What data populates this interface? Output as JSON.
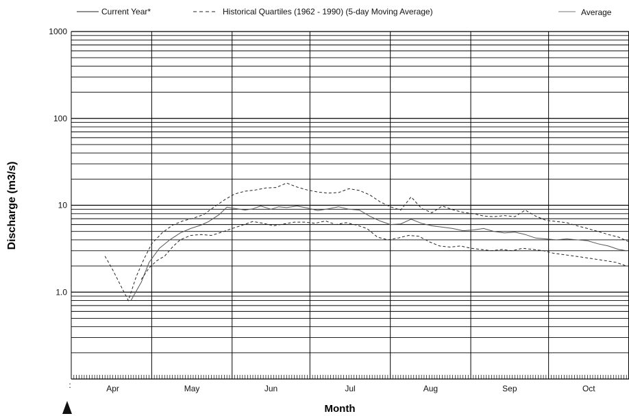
{
  "chart_data": {
    "type": "line",
    "title": "",
    "xlabel": "Month",
    "ylabel": "Discharge (m3/s)",
    "yscale": "log",
    "ylim": [
      0.1,
      1000
    ],
    "y_tick_labels": [
      {
        "value": 1000,
        "label": "1000"
      },
      {
        "value": 100,
        "label": "100"
      },
      {
        "value": 10,
        "label": "10"
      },
      {
        "value": 1,
        "label": "1.0"
      }
    ],
    "x_tick_labels": [
      "Apr",
      "May",
      "Jun",
      "Jul",
      "Aug",
      "Sep",
      "Oct"
    ],
    "x_unit": "day-of-year",
    "xlim": [
      90,
      305
    ],
    "legend": {
      "placement": "top",
      "entries": [
        {
          "label": "Current Year*",
          "style": "solid"
        },
        {
          "label": "Historical Quartiles (1962  -  1990)  (5-day Moving Average)",
          "style": "dashed"
        },
        {
          "label": "Average",
          "style": "solid-light"
        }
      ]
    },
    "grid": true,
    "series": [
      {
        "name": "Average",
        "style": "solid-light",
        "color": "#555555",
        "x": [
          113,
          117,
          120,
          124,
          128,
          132,
          136,
          140,
          143,
          147,
          150,
          153,
          157,
          160,
          163,
          167,
          170,
          173,
          177,
          181,
          185,
          189,
          193,
          197,
          201,
          205,
          209,
          213,
          217,
          221,
          225,
          229,
          233,
          237,
          241,
          245,
          249,
          253,
          257,
          261,
          265,
          269,
          273,
          277,
          281,
          285,
          289,
          293,
          297,
          301,
          304
        ],
        "y": [
          0.8,
          1.3,
          2.2,
          3.2,
          4.0,
          4.8,
          5.4,
          5.9,
          6.5,
          7.8,
          9.5,
          9.2,
          8.8,
          9.1,
          9.8,
          9.0,
          9.6,
          9.4,
          9.8,
          9.3,
          8.7,
          9.1,
          9.6,
          9.0,
          8.8,
          7.5,
          6.6,
          6.0,
          6.1,
          6.9,
          6.2,
          5.8,
          5.6,
          5.4,
          5.1,
          5.2,
          5.4,
          5.0,
          4.8,
          4.9,
          4.6,
          4.2,
          4.1,
          4.0,
          4.1,
          4.0,
          3.9,
          3.6,
          3.4,
          3.1,
          3.0
        ]
      },
      {
        "name": "Upper Quartile",
        "style": "dashed",
        "color": "#222222",
        "x": [
          103,
          106,
          109,
          112,
          115,
          118,
          121,
          125,
          129,
          133,
          137,
          141,
          145,
          149,
          153,
          157,
          161,
          165,
          169,
          173,
          177,
          181,
          185,
          189,
          193,
          197,
          201,
          205,
          209,
          213,
          217,
          221,
          225,
          229,
          233,
          237,
          241,
          245,
          249,
          253,
          257,
          261,
          265,
          269,
          273,
          277,
          281,
          285,
          289,
          293,
          297,
          301,
          305
        ],
        "y": [
          2.6,
          1.8,
          1.2,
          0.8,
          1.5,
          2.4,
          3.6,
          4.8,
          5.9,
          6.6,
          7.1,
          7.8,
          9.5,
          11.5,
          13.5,
          14.5,
          15.0,
          15.8,
          16.0,
          18.0,
          16.2,
          15.0,
          14.2,
          13.8,
          14.0,
          15.5,
          14.8,
          13.2,
          11.0,
          9.6,
          8.8,
          12.5,
          9.2,
          8.2,
          9.8,
          8.9,
          8.3,
          8.0,
          7.5,
          7.4,
          7.6,
          7.4,
          8.8,
          7.5,
          6.7,
          6.5,
          6.3,
          5.8,
          5.4,
          5.0,
          4.6,
          4.3,
          3.8
        ]
      },
      {
        "name": "Lower Quartile",
        "style": "dashed",
        "color": "#222222",
        "x": [
          117,
          120,
          123,
          126,
          129,
          132,
          136,
          140,
          144,
          148,
          152,
          156,
          160,
          164,
          168,
          172,
          176,
          180,
          184,
          188,
          192,
          196,
          200,
          204,
          208,
          212,
          216,
          220,
          224,
          228,
          232,
          236,
          240,
          244,
          248,
          252,
          256,
          260,
          264,
          268,
          272,
          276,
          280,
          284,
          288,
          292,
          296,
          300,
          304
        ],
        "y": [
          1.4,
          1.9,
          2.3,
          2.6,
          3.3,
          4.0,
          4.5,
          4.6,
          4.5,
          4.9,
          5.4,
          5.9,
          6.5,
          6.2,
          5.8,
          6.1,
          6.4,
          6.4,
          6.2,
          6.6,
          6.0,
          6.3,
          5.9,
          5.4,
          4.3,
          4.0,
          4.2,
          4.5,
          4.4,
          3.8,
          3.4,
          3.3,
          3.4,
          3.2,
          3.1,
          3.0,
          3.1,
          3.0,
          3.2,
          3.1,
          3.0,
          2.8,
          2.7,
          2.6,
          2.5,
          2.4,
          2.3,
          2.2,
          2.0
        ]
      }
    ]
  }
}
